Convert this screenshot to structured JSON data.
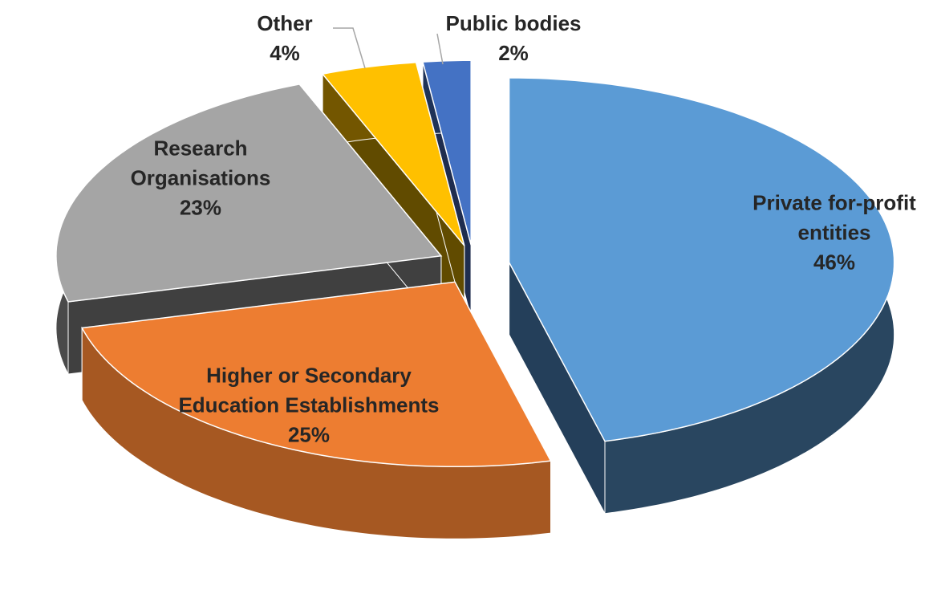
{
  "chart_data": {
    "type": "pie",
    "categories": [
      "Private for-profit entities",
      "Higher or Secondary Education Establishments",
      "Research Organisations",
      "Other",
      "Public bodies"
    ],
    "values": [
      46,
      25,
      23,
      4,
      2
    ],
    "value_labels": [
      "46%",
      "25%",
      "23%",
      "4%",
      "2%"
    ],
    "colors": [
      "#5b9bd5",
      "#ed7d31",
      "#a5a5a5",
      "#ffc000",
      "#4472c4"
    ]
  }
}
